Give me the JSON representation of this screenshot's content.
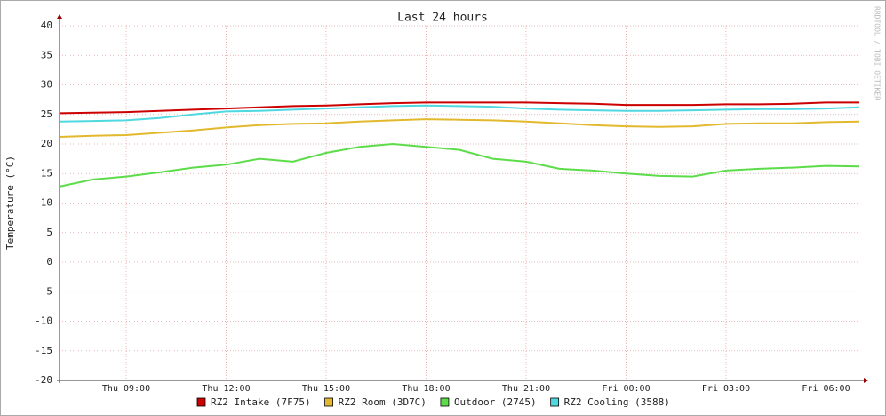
{
  "chart_data": {
    "type": "line",
    "title": "Last 24 hours",
    "y_label": "Temperature (°C)",
    "watermark": "RRDTOOL / TOBI OETIKER",
    "categories": [
      null,
      null,
      "Thu 09:00",
      null,
      null,
      "Thu 12:00",
      null,
      null,
      "Thu 15:00",
      null,
      null,
      "Thu 18:00",
      null,
      null,
      "Thu 21:00",
      null,
      null,
      "Fri 00:00",
      null,
      null,
      "Fri 03:00",
      null,
      null,
      "Fri 06:00",
      null
    ],
    "series": [
      {
        "name": "RZ2 Intake (7F75)",
        "color": "#cc0000",
        "values": [
          25.2,
          25.3,
          25.4,
          25.6,
          25.8,
          26,
          26.2,
          26.4,
          26.5,
          26.7,
          26.9,
          27,
          27,
          27,
          27,
          26.9,
          26.8,
          26.6,
          26.6,
          26.6,
          26.7,
          26.7,
          26.8,
          27,
          27
        ]
      },
      {
        "name": "RZ2 Room (3D7C)",
        "color": "#e2b92e",
        "values": [
          21.2,
          21.4,
          21.5,
          21.9,
          22.3,
          22.8,
          23.2,
          23.4,
          23.5,
          23.8,
          24,
          24.2,
          24.1,
          24,
          23.8,
          23.5,
          23.2,
          23,
          22.9,
          23,
          23.4,
          23.5,
          23.5,
          23.7,
          23.8
        ]
      },
      {
        "name": "Outdoor (2745)",
        "color": "#5ddc4a",
        "values": [
          12.8,
          14,
          14.5,
          15.2,
          16,
          16.5,
          17.5,
          17,
          18.5,
          19.5,
          20,
          19.5,
          19,
          17.5,
          17,
          15.8,
          15.5,
          15,
          14.6,
          14.5,
          15.5,
          15.8,
          16,
          16.3,
          16.2
        ]
      },
      {
        "name": "RZ2 Cooling (3588)",
        "color": "#4fd8e0",
        "values": [
          23.8,
          23.9,
          24,
          24.4,
          25,
          25.5,
          25.6,
          25.8,
          26,
          26.2,
          26.4,
          26.5,
          26.4,
          26.3,
          26,
          25.8,
          25.7,
          25.6,
          25.6,
          25.7,
          25.8,
          25.9,
          25.9,
          26,
          26.2
        ]
      }
    ],
    "ylim": [
      -20,
      40
    ],
    "yticks": [
      -20,
      -15,
      -10,
      -5,
      0,
      5,
      10,
      15,
      20,
      25,
      30,
      35,
      40
    ],
    "grid": true
  }
}
